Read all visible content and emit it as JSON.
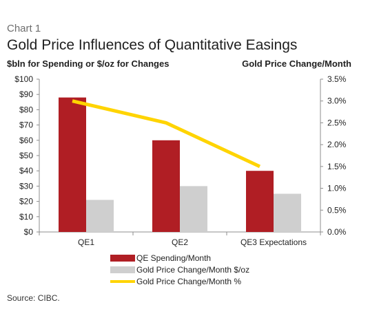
{
  "header": {
    "chart_label": "Chart 1",
    "title": "Gold Price Influences of Quantitative Easings"
  },
  "source": "Source: CIBC.",
  "colors": {
    "spending": "#b01e24",
    "dollar_change": "#cfcfcf",
    "pct_change": "#ffd400",
    "axis": "#8c8c8c"
  },
  "chart_data": {
    "type": "bar",
    "categories": [
      "QE1",
      "QE2",
      "QE3 Expectations"
    ],
    "series": [
      {
        "name": "QE Spending/Month",
        "kind": "bar",
        "axis": "left",
        "values": [
          88,
          60,
          40
        ]
      },
      {
        "name": "Gold Price Change/Month $/oz",
        "kind": "bar",
        "axis": "left",
        "values": [
          21,
          30,
          25
        ]
      },
      {
        "name": "Gold Price Change/Month %",
        "kind": "line",
        "axis": "right",
        "values": [
          3.0,
          2.5,
          1.5
        ]
      }
    ],
    "ylabel_left": "$bln for Spending or $/oz for Changes",
    "ylabel_right": "Gold Price Change/Month",
    "ylim_left": [
      0,
      100
    ],
    "ylim_right": [
      0,
      3.5
    ],
    "yticks_left": [
      "$0",
      "$10",
      "$20",
      "$30",
      "$40",
      "$50",
      "$60",
      "$70",
      "$80",
      "$90",
      "$100"
    ],
    "yticks_right": [
      "0.0%",
      "0.5%",
      "1.0%",
      "1.5%",
      "2.0%",
      "2.5%",
      "3.0%",
      "3.5%"
    ],
    "grid": false,
    "legend_position": "bottom"
  }
}
